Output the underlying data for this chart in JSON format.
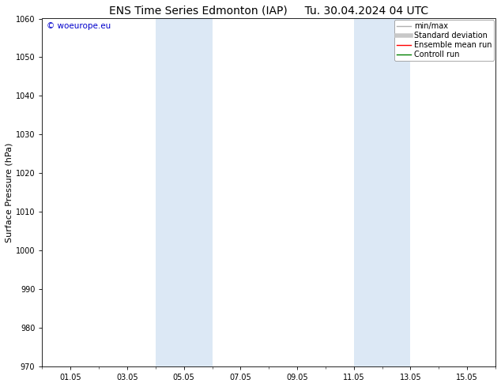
{
  "title_left": "ENS Time Series Edmonton (IAP)",
  "title_right": "Tu. 30.04.2024 04 UTC",
  "ylabel": "Surface Pressure (hPa)",
  "ylim": [
    970,
    1060
  ],
  "yticks": [
    970,
    980,
    990,
    1000,
    1010,
    1020,
    1030,
    1040,
    1050,
    1060
  ],
  "xtick_labels": [
    "01.05",
    "03.05",
    "05.05",
    "07.05",
    "09.05",
    "11.05",
    "13.05",
    "15.05"
  ],
  "xtick_positions": [
    1,
    3,
    5,
    7,
    9,
    11,
    13,
    15
  ],
  "xlim": [
    0,
    16
  ],
  "shaded_bands": [
    {
      "x_start": 4,
      "x_end": 6
    },
    {
      "x_start": 11,
      "x_end": 13
    }
  ],
  "shade_color": "#dce8f5",
  "background_color": "#ffffff",
  "watermark_text": "© woeurope.eu",
  "watermark_color": "#0000cc",
  "legend_entries": [
    {
      "label": "min/max",
      "color": "#b0b0b0",
      "lw": 1.0
    },
    {
      "label": "Standard deviation",
      "color": "#c8c8c8",
      "lw": 4.0
    },
    {
      "label": "Ensemble mean run",
      "color": "#ff0000",
      "lw": 1.0
    },
    {
      "label": "Controll run",
      "color": "#008000",
      "lw": 1.0
    }
  ],
  "title_fontsize": 10,
  "tick_fontsize": 7,
  "ylabel_fontsize": 8,
  "legend_fontsize": 7
}
